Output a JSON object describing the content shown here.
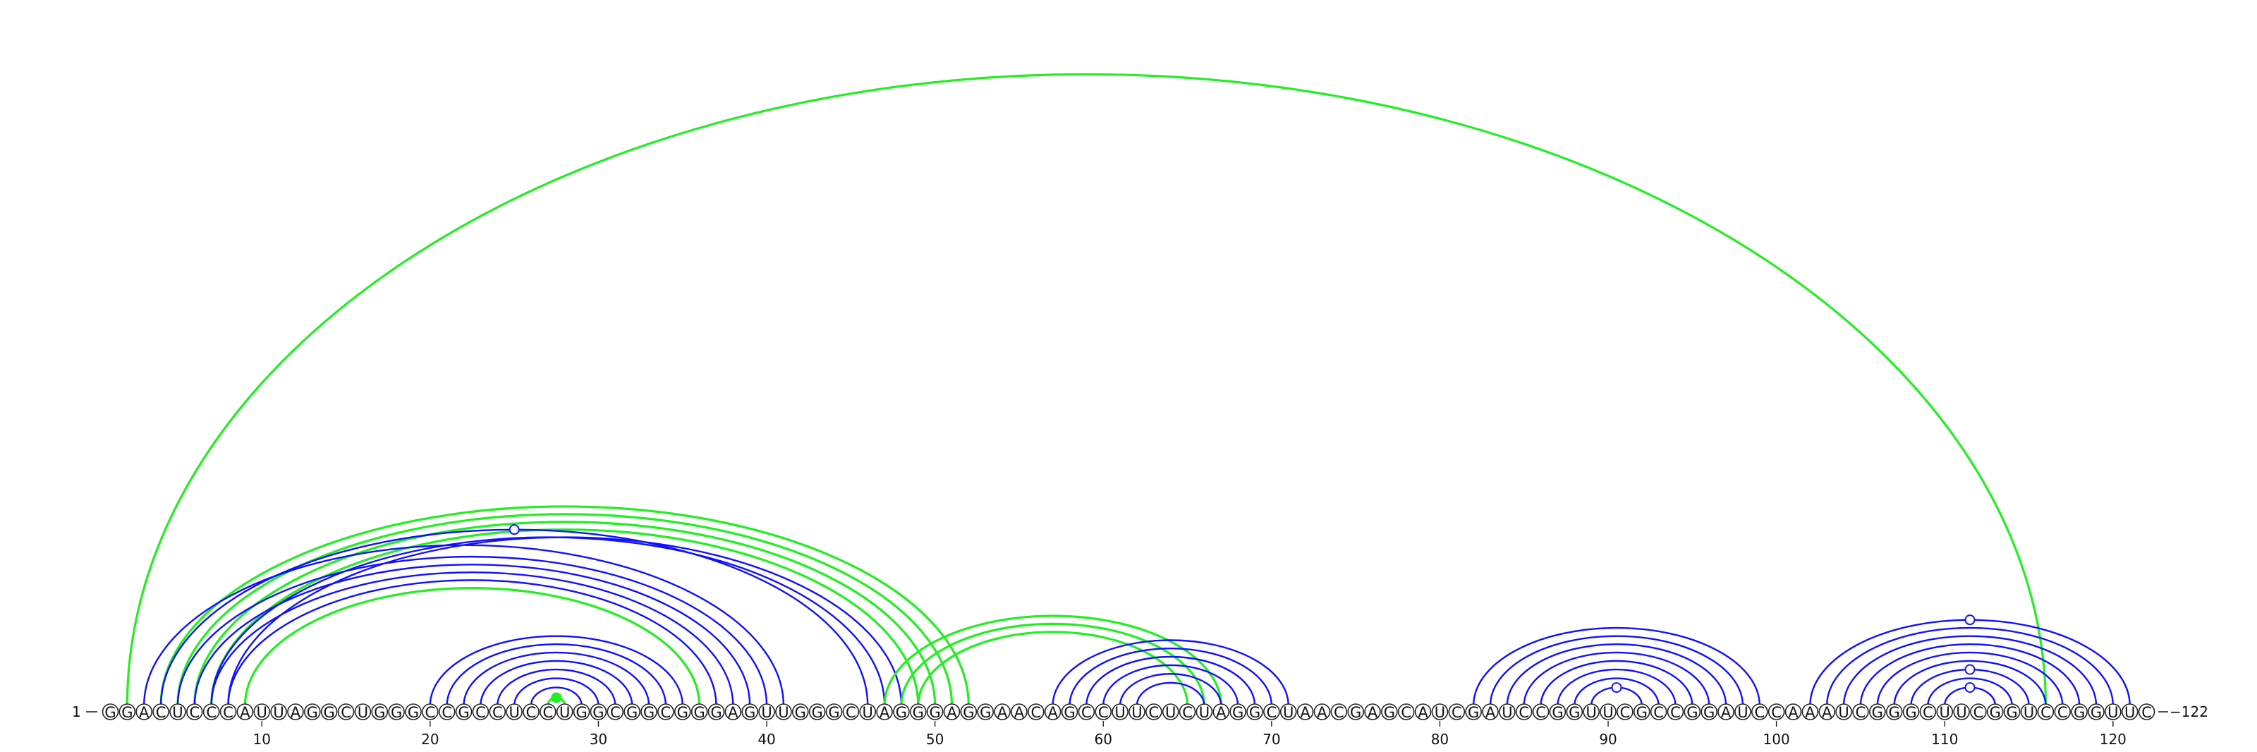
{
  "sequence": "GGACUCCCAUUAGGCUGGGCCGCCUCCUGGCGGCGGGAGUUGGGCUAGGGAGGAACAGCCUUCUCUAGGCUAACGAGCAUCGAUCCGGUUCGCCGGAUCCAAAUCGGGCUUCGGUCCGGUUC",
  "start_label": "1",
  "end_label": "122",
  "tick_positions": [
    10,
    20,
    30,
    40,
    50,
    60,
    70,
    80,
    90,
    100,
    110,
    120
  ],
  "colors": {
    "blue": "#1010ff",
    "green": "#22ee22"
  },
  "arcs": [
    {
      "i": 2,
      "j": 116,
      "color": "green"
    },
    {
      "i": 4,
      "j": 52,
      "color": "green"
    },
    {
      "i": 5,
      "j": 51,
      "color": "green"
    },
    {
      "i": 6,
      "j": 50,
      "color": "green"
    },
    {
      "i": 7,
      "j": 49,
      "color": "green"
    },
    {
      "i": 8,
      "j": 48,
      "color": "blue"
    },
    {
      "i": 7,
      "j": 47,
      "color": "blue"
    },
    {
      "i": 4,
      "j": 46,
      "color": "blue"
    },
    {
      "i": 3,
      "j": 41,
      "color": "blue"
    },
    {
      "i": 5,
      "j": 40,
      "color": "blue"
    },
    {
      "i": 6,
      "j": 39,
      "color": "blue"
    },
    {
      "i": 7,
      "j": 38,
      "color": "blue"
    },
    {
      "i": 8,
      "j": 37,
      "color": "blue"
    },
    {
      "i": 9,
      "j": 36,
      "color": "green"
    },
    {
      "i": 20,
      "j": 35,
      "color": "blue"
    },
    {
      "i": 21,
      "j": 34,
      "color": "blue"
    },
    {
      "i": 22,
      "j": 33,
      "color": "blue"
    },
    {
      "i": 23,
      "j": 32,
      "color": "blue"
    },
    {
      "i": 24,
      "j": 31,
      "color": "blue"
    },
    {
      "i": 25,
      "j": 30,
      "color": "blue"
    },
    {
      "i": 26,
      "j": 29,
      "color": "blue"
    },
    {
      "i": 27,
      "j": 28,
      "color": "green"
    },
    {
      "i": 47,
      "j": 67,
      "color": "green"
    },
    {
      "i": 48,
      "j": 66,
      "color": "green"
    },
    {
      "i": 49,
      "j": 65,
      "color": "green"
    },
    {
      "i": 57,
      "j": 71,
      "color": "blue"
    },
    {
      "i": 58,
      "j": 70,
      "color": "blue"
    },
    {
      "i": 59,
      "j": 69,
      "color": "blue"
    },
    {
      "i": 60,
      "j": 68,
      "color": "blue"
    },
    {
      "i": 61,
      "j": 67,
      "color": "blue"
    },
    {
      "i": 62,
      "j": 66,
      "color": "blue"
    },
    {
      "i": 82,
      "j": 99,
      "color": "blue"
    },
    {
      "i": 83,
      "j": 98,
      "color": "blue"
    },
    {
      "i": 84,
      "j": 97,
      "color": "blue"
    },
    {
      "i": 85,
      "j": 96,
      "color": "blue"
    },
    {
      "i": 86,
      "j": 95,
      "color": "blue"
    },
    {
      "i": 87,
      "j": 94,
      "color": "blue"
    },
    {
      "i": 88,
      "j": 93,
      "color": "blue"
    },
    {
      "i": 89,
      "j": 92,
      "color": "blue"
    },
    {
      "i": 102,
      "j": 121,
      "color": "blue"
    },
    {
      "i": 103,
      "j": 120,
      "color": "blue"
    },
    {
      "i": 104,
      "j": 119,
      "color": "blue"
    },
    {
      "i": 105,
      "j": 118,
      "color": "blue"
    },
    {
      "i": 106,
      "j": 117,
      "color": "blue"
    },
    {
      "i": 107,
      "j": 116,
      "color": "blue"
    },
    {
      "i": 108,
      "j": 115,
      "color": "blue"
    },
    {
      "i": 109,
      "j": 114,
      "color": "blue"
    },
    {
      "i": 110,
      "j": 113,
      "color": "blue"
    }
  ],
  "markers": [
    {
      "arc": 7,
      "color": "blue",
      "filled": false
    },
    {
      "arc": 21,
      "color": "green",
      "filled": true
    },
    {
      "arc": 38,
      "color": "blue",
      "filled": false
    },
    {
      "arc": 39,
      "color": "blue",
      "filled": false
    },
    {
      "arc": 45,
      "color": "blue",
      "filled": false
    },
    {
      "arc": 47,
      "color": "blue",
      "filled": false
    }
  ]
}
